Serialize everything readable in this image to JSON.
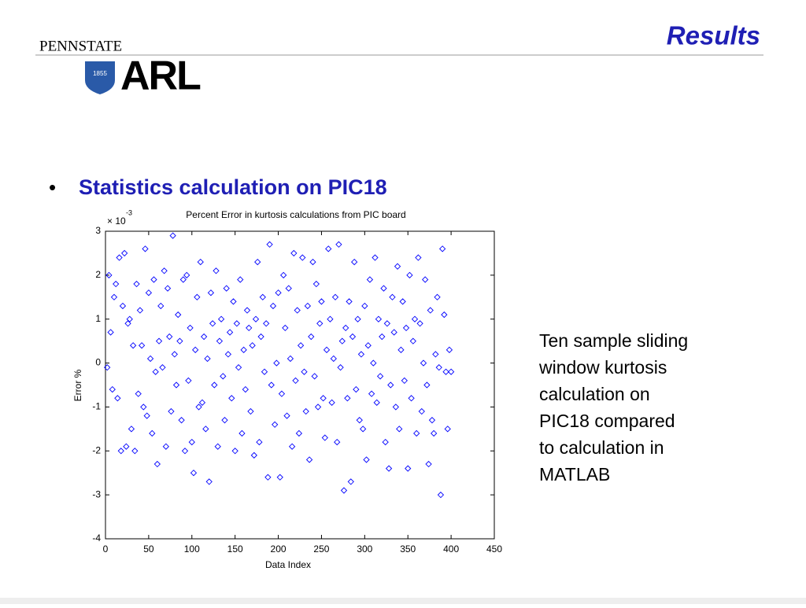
{
  "header": {
    "title": "Results",
    "logo_top": "PENNSTATE",
    "logo_main": "ARL",
    "logo_year": "1855"
  },
  "bullet": "Statistics calculation on PIC18",
  "note": [
    "Ten sample sliding",
    "window kurtosis",
    "calculation on",
    "PIC18 compared",
    "to calculation in",
    "MATLAB"
  ],
  "chart_data": {
    "type": "scatter",
    "title": "Percent Error in kurtosis calculations from PIC board",
    "xlabel": "Data Index",
    "ylabel": "Error %",
    "y_multiplier": "× 10",
    "y_exponent": "-3",
    "color": "#0000ff",
    "xlim": [
      0,
      450
    ],
    "xticks": [
      0,
      50,
      100,
      150,
      200,
      250,
      300,
      350,
      400,
      450
    ],
    "ylim": [
      -4,
      3
    ],
    "yticks": [
      -4,
      -3,
      -2,
      -1,
      0,
      1,
      2,
      3
    ],
    "x": [
      2,
      4,
      6,
      8,
      10,
      12,
      14,
      16,
      18,
      20,
      22,
      24,
      26,
      28,
      30,
      32,
      34,
      36,
      38,
      40,
      42,
      44,
      46,
      48,
      50,
      52,
      54,
      56,
      58,
      60,
      62,
      64,
      66,
      68,
      70,
      72,
      74,
      76,
      78,
      80,
      82,
      84,
      86,
      88,
      90,
      92,
      94,
      96,
      98,
      100,
      102,
      104,
      106,
      108,
      110,
      112,
      114,
      116,
      118,
      120,
      122,
      124,
      126,
      128,
      130,
      132,
      134,
      136,
      138,
      140,
      142,
      144,
      146,
      148,
      150,
      152,
      154,
      156,
      158,
      160,
      162,
      164,
      166,
      168,
      170,
      172,
      174,
      176,
      178,
      180,
      182,
      184,
      186,
      188,
      190,
      192,
      194,
      196,
      198,
      200,
      202,
      204,
      206,
      208,
      210,
      212,
      214,
      216,
      218,
      220,
      222,
      224,
      226,
      228,
      230,
      232,
      234,
      236,
      238,
      240,
      242,
      244,
      246,
      248,
      250,
      252,
      254,
      256,
      258,
      260,
      262,
      264,
      266,
      268,
      270,
      272,
      274,
      276,
      278,
      280,
      282,
      284,
      286,
      288,
      290,
      292,
      294,
      296,
      298,
      300,
      302,
      304,
      306,
      308,
      310,
      312,
      314,
      316,
      318,
      320,
      322,
      324,
      326,
      328,
      330,
      332,
      334,
      336,
      338,
      340,
      342,
      344,
      346,
      348,
      350,
      352,
      354,
      356,
      358,
      360,
      362,
      364,
      366,
      368,
      370,
      372,
      374,
      376,
      378,
      380,
      382,
      384,
      386,
      388,
      390,
      392,
      394,
      396,
      398,
      400
    ],
    "values": [
      -0.1,
      2.0,
      0.7,
      -0.6,
      1.5,
      1.8,
      -0.8,
      2.4,
      -2.0,
      1.3,
      2.5,
      -1.9,
      0.9,
      1.0,
      -1.5,
      0.4,
      -2.0,
      1.8,
      -0.7,
      1.2,
      0.4,
      -1.0,
      2.6,
      -1.2,
      1.6,
      0.1,
      -1.6,
      1.9,
      -0.2,
      -2.3,
      0.5,
      1.3,
      -0.1,
      2.1,
      -1.9,
      1.7,
      0.6,
      -1.1,
      2.9,
      0.2,
      -0.5,
      1.1,
      0.5,
      -1.3,
      1.9,
      -2.0,
      2.0,
      -0.4,
      0.8,
      -1.8,
      -2.5,
      0.3,
      1.5,
      -1.0,
      2.3,
      -0.9,
      0.6,
      -1.5,
      0.1,
      -2.7,
      1.6,
      0.9,
      -0.5,
      2.1,
      -1.9,
      0.5,
      1.0,
      -0.3,
      -1.3,
      1.7,
      0.2,
      0.7,
      -0.8,
      1.4,
      -2.0,
      0.9,
      -0.1,
      1.9,
      -1.6,
      0.3,
      -0.6,
      1.2,
      0.8,
      -1.1,
      0.4,
      -2.1,
      1.0,
      2.3,
      -1.8,
      0.6,
      1.5,
      -0.2,
      0.9,
      -2.6,
      2.7,
      -0.5,
      1.3,
      -1.4,
      0.0,
      1.6,
      -2.6,
      -0.7,
      2.0,
      0.8,
      -1.2,
      1.7,
      0.1,
      -1.9,
      2.5,
      -0.4,
      1.2,
      -1.6,
      0.4,
      2.4,
      -0.2,
      -1.1,
      1.3,
      -2.2,
      0.6,
      2.3,
      -0.3,
      1.8,
      -1.0,
      0.9,
      1.4,
      -0.8,
      -1.7,
      0.3,
      2.6,
      1.0,
      -0.9,
      0.1,
      1.5,
      -1.8,
      2.7,
      -0.1,
      0.5,
      -2.9,
      0.8,
      -0.8,
      1.4,
      -2.7,
      0.6,
      2.3,
      -0.6,
      1.0,
      -1.3,
      0.2,
      -1.5,
      1.3,
      -2.2,
      0.4,
      1.9,
      -0.7,
      0.0,
      2.4,
      -0.9,
      1.0,
      -0.3,
      0.6,
      1.7,
      -1.8,
      0.9,
      -2.4,
      -0.5,
      1.5,
      0.7,
      -1.0,
      2.2,
      -1.5,
      0.3,
      1.4,
      -0.4,
      0.8,
      -2.4,
      2.0,
      -0.8,
      0.5,
      1.0,
      -1.6,
      2.4,
      0.9,
      -1.1,
      0.0,
      1.9,
      -0.5,
      -2.3,
      1.2,
      -1.3,
      -1.6,
      0.2,
      1.5,
      -0.1,
      -3.0,
      2.6,
      1.1,
      -0.2,
      -1.5,
      0.3,
      -0.2
    ]
  }
}
